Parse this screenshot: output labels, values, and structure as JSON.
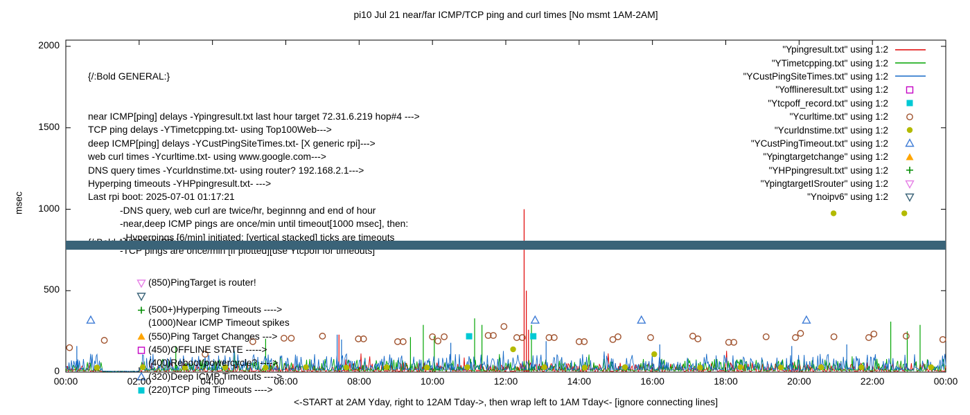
{
  "title": "pi10 Jul 21  near/far ICMP/TCP ping and curl times [No msmt 1AM-2AM]",
  "colors": {
    "red": "#e00000",
    "green": "#00a400",
    "blue": "#1569c7",
    "magenta": "#c400c4",
    "cyan": "#00c9d4",
    "darkorange": "#a0522d",
    "olive": "#b3ba00",
    "lightblue": "#3f7cd6",
    "orange": "#ffa500",
    "hpgreen": "#008c00",
    "violet": "#e680e6",
    "slate": "#3a6378"
  },
  "legend": {
    "entries": [
      {
        "label": "\"Ypingresult.txt\" using 1:2",
        "sample": "line",
        "color": "red"
      },
      {
        "label": "\"YTimetcpping.txt\" using 1:2",
        "sample": "line",
        "color": "green"
      },
      {
        "label": "\"YCustPingSiteTimes.txt\" using 1:2",
        "sample": "line",
        "color": "blue"
      },
      {
        "label": "\"Yofflineresult.txt\" using 1:2",
        "sample": "square-open",
        "color": "magenta"
      },
      {
        "label": "\"Ytcpoff_record.txt\" using 1:2",
        "sample": "square-fill",
        "color": "cyan"
      },
      {
        "label": "\"Ycurltime.txt\" using 1:2",
        "sample": "circle-open",
        "color": "darkorange"
      },
      {
        "label": "\"Ycurldnstime.txt\" using 1:2",
        "sample": "circle-fill",
        "color": "olive"
      },
      {
        "label": "\"YCustPingTimeout.txt\" using 1:2",
        "sample": "tri-up-open",
        "color": "lightblue"
      },
      {
        "label": "\"Ypingtargetchange\" using 1:2",
        "sample": "tri-up-fill",
        "color": "orange"
      },
      {
        "label": "\"YHPpingresult.txt\" using 1:2",
        "sample": "plus",
        "color": "hpgreen"
      },
      {
        "label": "\"YpingtargetISrouter\" using 1:2",
        "sample": "tri-down-open",
        "color": "violet"
      },
      {
        "label": "\"Ynoipv6\" using 1:2",
        "sample": "tri-down-open",
        "color": "slate"
      }
    ]
  },
  "general": {
    "header": "{/:Bold GENERAL:}",
    "lines": [
      "near ICMP[ping] delays -Ypingresult.txt last hour target 72.31.6.219 hop#4 --->",
      "TCP ping delays -YTimetcpping.txt- using Top100Web--->",
      "deep ICMP[ping] delays -YCustPingSiteTimes.txt- [X generic rpi]--->",
      "web curl times -Ycurltime.txt- using www.google.com--->",
      "DNS query times -Ycurldnstime.txt- using router? 192.168.2.1--->",
      "Hyperping timeouts -YHPpingresult.txt- --->",
      "Last rpi boot: 2025-07-01 01:17:21",
      "            -DNS query, web curl are twice/hr, beginnng and end of hour",
      "            -near,deep ICMP pings are once/min until timeout[1000 msec], then:",
      "             -Hyperpings [6/min] initiated; [vertical stacked] ticks are timeouts",
      "            -TCP pings are once/min [if plotted][use Ytcpoff for timeouts]"
    ]
  },
  "anomalies": {
    "header": "{/:Bold ANOMALIES:}",
    "rows": [
      {
        "marker": "tri-down-open",
        "color": "violet",
        "label": "(850)PingTarget is router!"
      },
      {
        "marker": "tri-down-open",
        "color": "slate",
        "label": ""
      },
      {
        "marker": "plus",
        "color": "hpgreen",
        "label": "(500+)Hyperping Timeouts ---->"
      },
      {
        "marker": "",
        "color": "",
        "label": "(1000)Near ICMP Timeout spikes"
      },
      {
        "marker": "tri-up-fill",
        "color": "orange",
        "label": "(550)Ping Target Changes --->"
      },
      {
        "marker": "square-open",
        "color": "magenta",
        "label": "(450)OFFLINE STATE ----->"
      },
      {
        "marker": "",
        "color": "",
        "label": "(400)Reboot/powercycle? ---->"
      },
      {
        "marker": "tri-up-open",
        "color": "lightblue",
        "label": "(320)Deep ICMP Timeouts ---->"
      },
      {
        "marker": "square-fill",
        "color": "cyan",
        "label": "(220)TCP ping Timeouts ---->"
      }
    ]
  },
  "chart_data": {
    "type": "line",
    "title": "pi10 Jul 21  near/far ICMP/TCP ping and curl times [No msmt 1AM-2AM]",
    "x_axis": {
      "label": "<-START at 2AM Yday, right to 12AM Tday->, then wrap left to 1AM Tday<- [ignore connecting lines]",
      "ticks": [
        "00:00",
        "02:00",
        "04:00",
        "06:00",
        "08:00",
        "10:00",
        "12:00",
        "14:00",
        "16:00",
        "18:00",
        "20:00",
        "22:00",
        "00:00"
      ],
      "range_hours": [
        0,
        24
      ]
    },
    "y_axis": {
      "label": "msec",
      "ticks": [
        "0",
        "500",
        "1000",
        "1500",
        "2000"
      ],
      "range": [
        0,
        2000
      ]
    },
    "no_measurement_window_hours": [
      1,
      2
    ],
    "series": [
      {
        "name": "Ypingresult.txt",
        "style": "line",
        "color": "red",
        "noise": {
          "seed": 11,
          "base": 5,
          "jitter": 55
        },
        "spikes": [
          [
            7.45,
            230
          ],
          [
            12.5,
            1000
          ],
          [
            12.56,
            500
          ],
          [
            12.62,
            260
          ]
        ]
      },
      {
        "name": "YTimetcpping.txt",
        "style": "line",
        "color": "green",
        "noise": {
          "seed": 22,
          "base": 8,
          "jitter": 75
        },
        "spikes": [
          [
            3.0,
            160
          ],
          [
            5.45,
            205
          ],
          [
            9.4,
            215
          ],
          [
            9.75,
            290
          ],
          [
            10.05,
            220
          ],
          [
            11.15,
            330
          ],
          [
            11.35,
            290
          ],
          [
            12.7,
            290
          ],
          [
            22.5,
            310
          ],
          [
            22.95,
            250
          ],
          [
            23.3,
            290
          ]
        ]
      },
      {
        "name": "YCustPingSiteTimes.txt",
        "style": "line",
        "color": "blue",
        "noise": {
          "seed": 33,
          "base": 12,
          "jitter": 100
        },
        "spikes": [
          [
            0.3,
            160
          ],
          [
            7.4,
            230
          ],
          [
            7.52,
            200
          ],
          [
            10.5,
            180
          ],
          [
            13.1,
            190
          ],
          [
            16.2,
            170
          ],
          [
            19.8,
            160
          ],
          [
            21.3,
            170
          ]
        ]
      },
      {
        "name": "Yofflineresult.txt",
        "style": "square-open",
        "color": "magenta",
        "points": []
      },
      {
        "name": "Ytcpoff_record.txt",
        "style": "square-fill",
        "color": "cyan",
        "points": [
          [
            11.0,
            220
          ],
          [
            12.75,
            220
          ]
        ]
      },
      {
        "name": "Ycurltime.txt",
        "style": "circle-open",
        "color": "darkorange",
        "points": [
          [
            0.1,
            150
          ],
          [
            1.05,
            195
          ],
          [
            3.8,
            110
          ],
          [
            5.1,
            187
          ],
          [
            5.95,
            208
          ],
          [
            6.15,
            208
          ],
          [
            7.0,
            221
          ],
          [
            7.98,
            204
          ],
          [
            8.12,
            204
          ],
          [
            9.05,
            187
          ],
          [
            9.2,
            187
          ],
          [
            10.0,
            217
          ],
          [
            10.15,
            191
          ],
          [
            10.32,
            217
          ],
          [
            11.52,
            225
          ],
          [
            11.66,
            225
          ],
          [
            11.95,
            280
          ],
          [
            12.3,
            212
          ],
          [
            12.45,
            212
          ],
          [
            13.18,
            212
          ],
          [
            13.32,
            212
          ],
          [
            14.0,
            187
          ],
          [
            14.14,
            187
          ],
          [
            14.92,
            200
          ],
          [
            15.06,
            217
          ],
          [
            15.95,
            212
          ],
          [
            17.1,
            221
          ],
          [
            17.24,
            204
          ],
          [
            18.08,
            183
          ],
          [
            18.22,
            183
          ],
          [
            19.1,
            217
          ],
          [
            19.9,
            212
          ],
          [
            20.04,
            238
          ],
          [
            20.95,
            217
          ],
          [
            21.9,
            212
          ],
          [
            22.04,
            234
          ],
          [
            22.92,
            221
          ],
          [
            23.92,
            200
          ]
        ]
      },
      {
        "name": "Ycurldnstime.txt",
        "style": "circle-fill",
        "color": "olive",
        "points": [
          [
            0.85,
            28
          ],
          [
            2.1,
            30
          ],
          [
            3.25,
            28
          ],
          [
            4.35,
            30
          ],
          [
            5.45,
            28
          ],
          [
            6.55,
            30
          ],
          [
            7.65,
            28
          ],
          [
            8.75,
            30
          ],
          [
            9.85,
            28
          ],
          [
            10.95,
            30
          ],
          [
            12.2,
            140
          ],
          [
            13.05,
            30
          ],
          [
            14.15,
            28
          ],
          [
            15.25,
            30
          ],
          [
            16.05,
            110
          ],
          [
            17.3,
            28
          ],
          [
            18.4,
            30
          ],
          [
            19.5,
            28
          ],
          [
            20.6,
            30
          ],
          [
            20.94,
            975
          ],
          [
            21.7,
            30
          ],
          [
            22.87,
            975
          ],
          [
            23.6,
            30
          ]
        ]
      },
      {
        "name": "YCustPingTimeout.txt",
        "style": "tri-up-open",
        "color": "lightblue",
        "points": [
          [
            0.68,
            320
          ],
          [
            12.8,
            320
          ],
          [
            15.7,
            320
          ],
          [
            20.2,
            320
          ]
        ]
      },
      {
        "name": "Ypingtargetchange",
        "style": "tri-up-fill",
        "color": "orange",
        "points": []
      },
      {
        "name": "YHPpingresult.txt",
        "style": "plus",
        "color": "hpgreen",
        "points": []
      },
      {
        "name": "YpingtargetISrouter",
        "style": "tri-down-open",
        "color": "violet",
        "points": []
      },
      {
        "name": "Ynoipv6",
        "style": "band",
        "color": "slate",
        "band_msec": [
          752,
          806
        ]
      }
    ]
  }
}
